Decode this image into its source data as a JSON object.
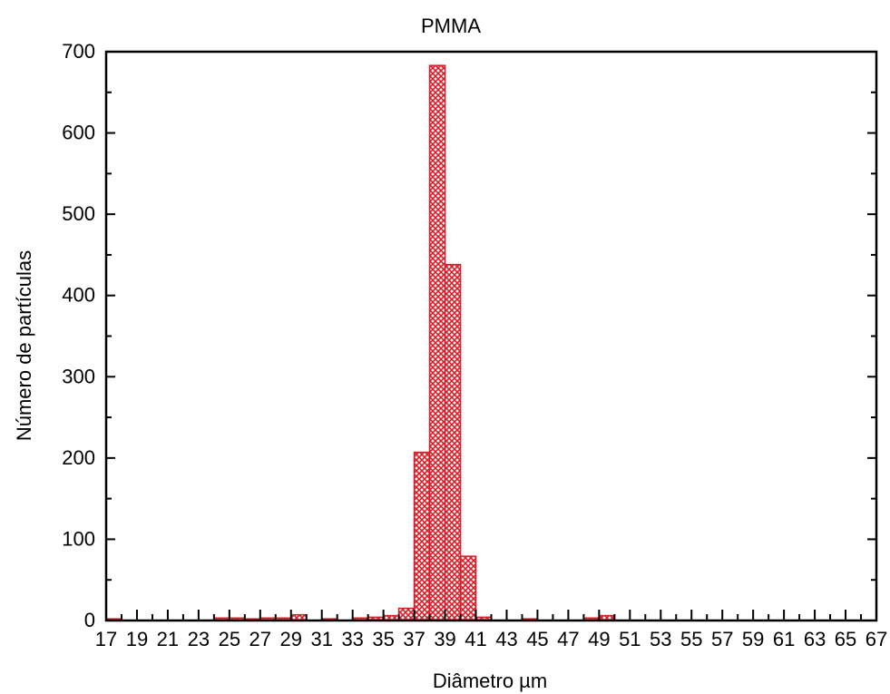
{
  "chart_data": {
    "type": "bar",
    "title": "PMMA",
    "xlabel": "Diâmetro µm",
    "ylabel": "Número de partículas",
    "xlim": [
      17,
      67
    ],
    "ylim": [
      0,
      700
    ],
    "x_ticks": [
      17,
      19,
      21,
      23,
      25,
      27,
      29,
      31,
      33,
      35,
      37,
      39,
      41,
      43,
      45,
      47,
      49,
      51,
      53,
      55,
      57,
      59,
      61,
      63,
      65,
      67
    ],
    "y_ticks": [
      0,
      100,
      200,
      300,
      400,
      500,
      600,
      700
    ],
    "bar_width": 1,
    "bars": [
      {
        "x": 17,
        "value": 2
      },
      {
        "x": 24,
        "value": 3
      },
      {
        "x": 25,
        "value": 3
      },
      {
        "x": 26,
        "value": 2
      },
      {
        "x": 27,
        "value": 3
      },
      {
        "x": 28,
        "value": 3
      },
      {
        "x": 29,
        "value": 7
      },
      {
        "x": 31,
        "value": 2
      },
      {
        "x": 33,
        "value": 3
      },
      {
        "x": 34,
        "value": 4
      },
      {
        "x": 35,
        "value": 6
      },
      {
        "x": 36,
        "value": 15
      },
      {
        "x": 37,
        "value": 207
      },
      {
        "x": 38,
        "value": 683
      },
      {
        "x": 39,
        "value": 438
      },
      {
        "x": 40,
        "value": 79
      },
      {
        "x": 41,
        "value": 4
      },
      {
        "x": 44,
        "value": 2
      },
      {
        "x": 48,
        "value": 3
      },
      {
        "x": 49,
        "value": 6
      }
    ],
    "grid": false,
    "colors": {
      "bar_stroke": "#d81e2a",
      "bar_hatch": "#d81e2a",
      "axis": "#000000"
    }
  }
}
